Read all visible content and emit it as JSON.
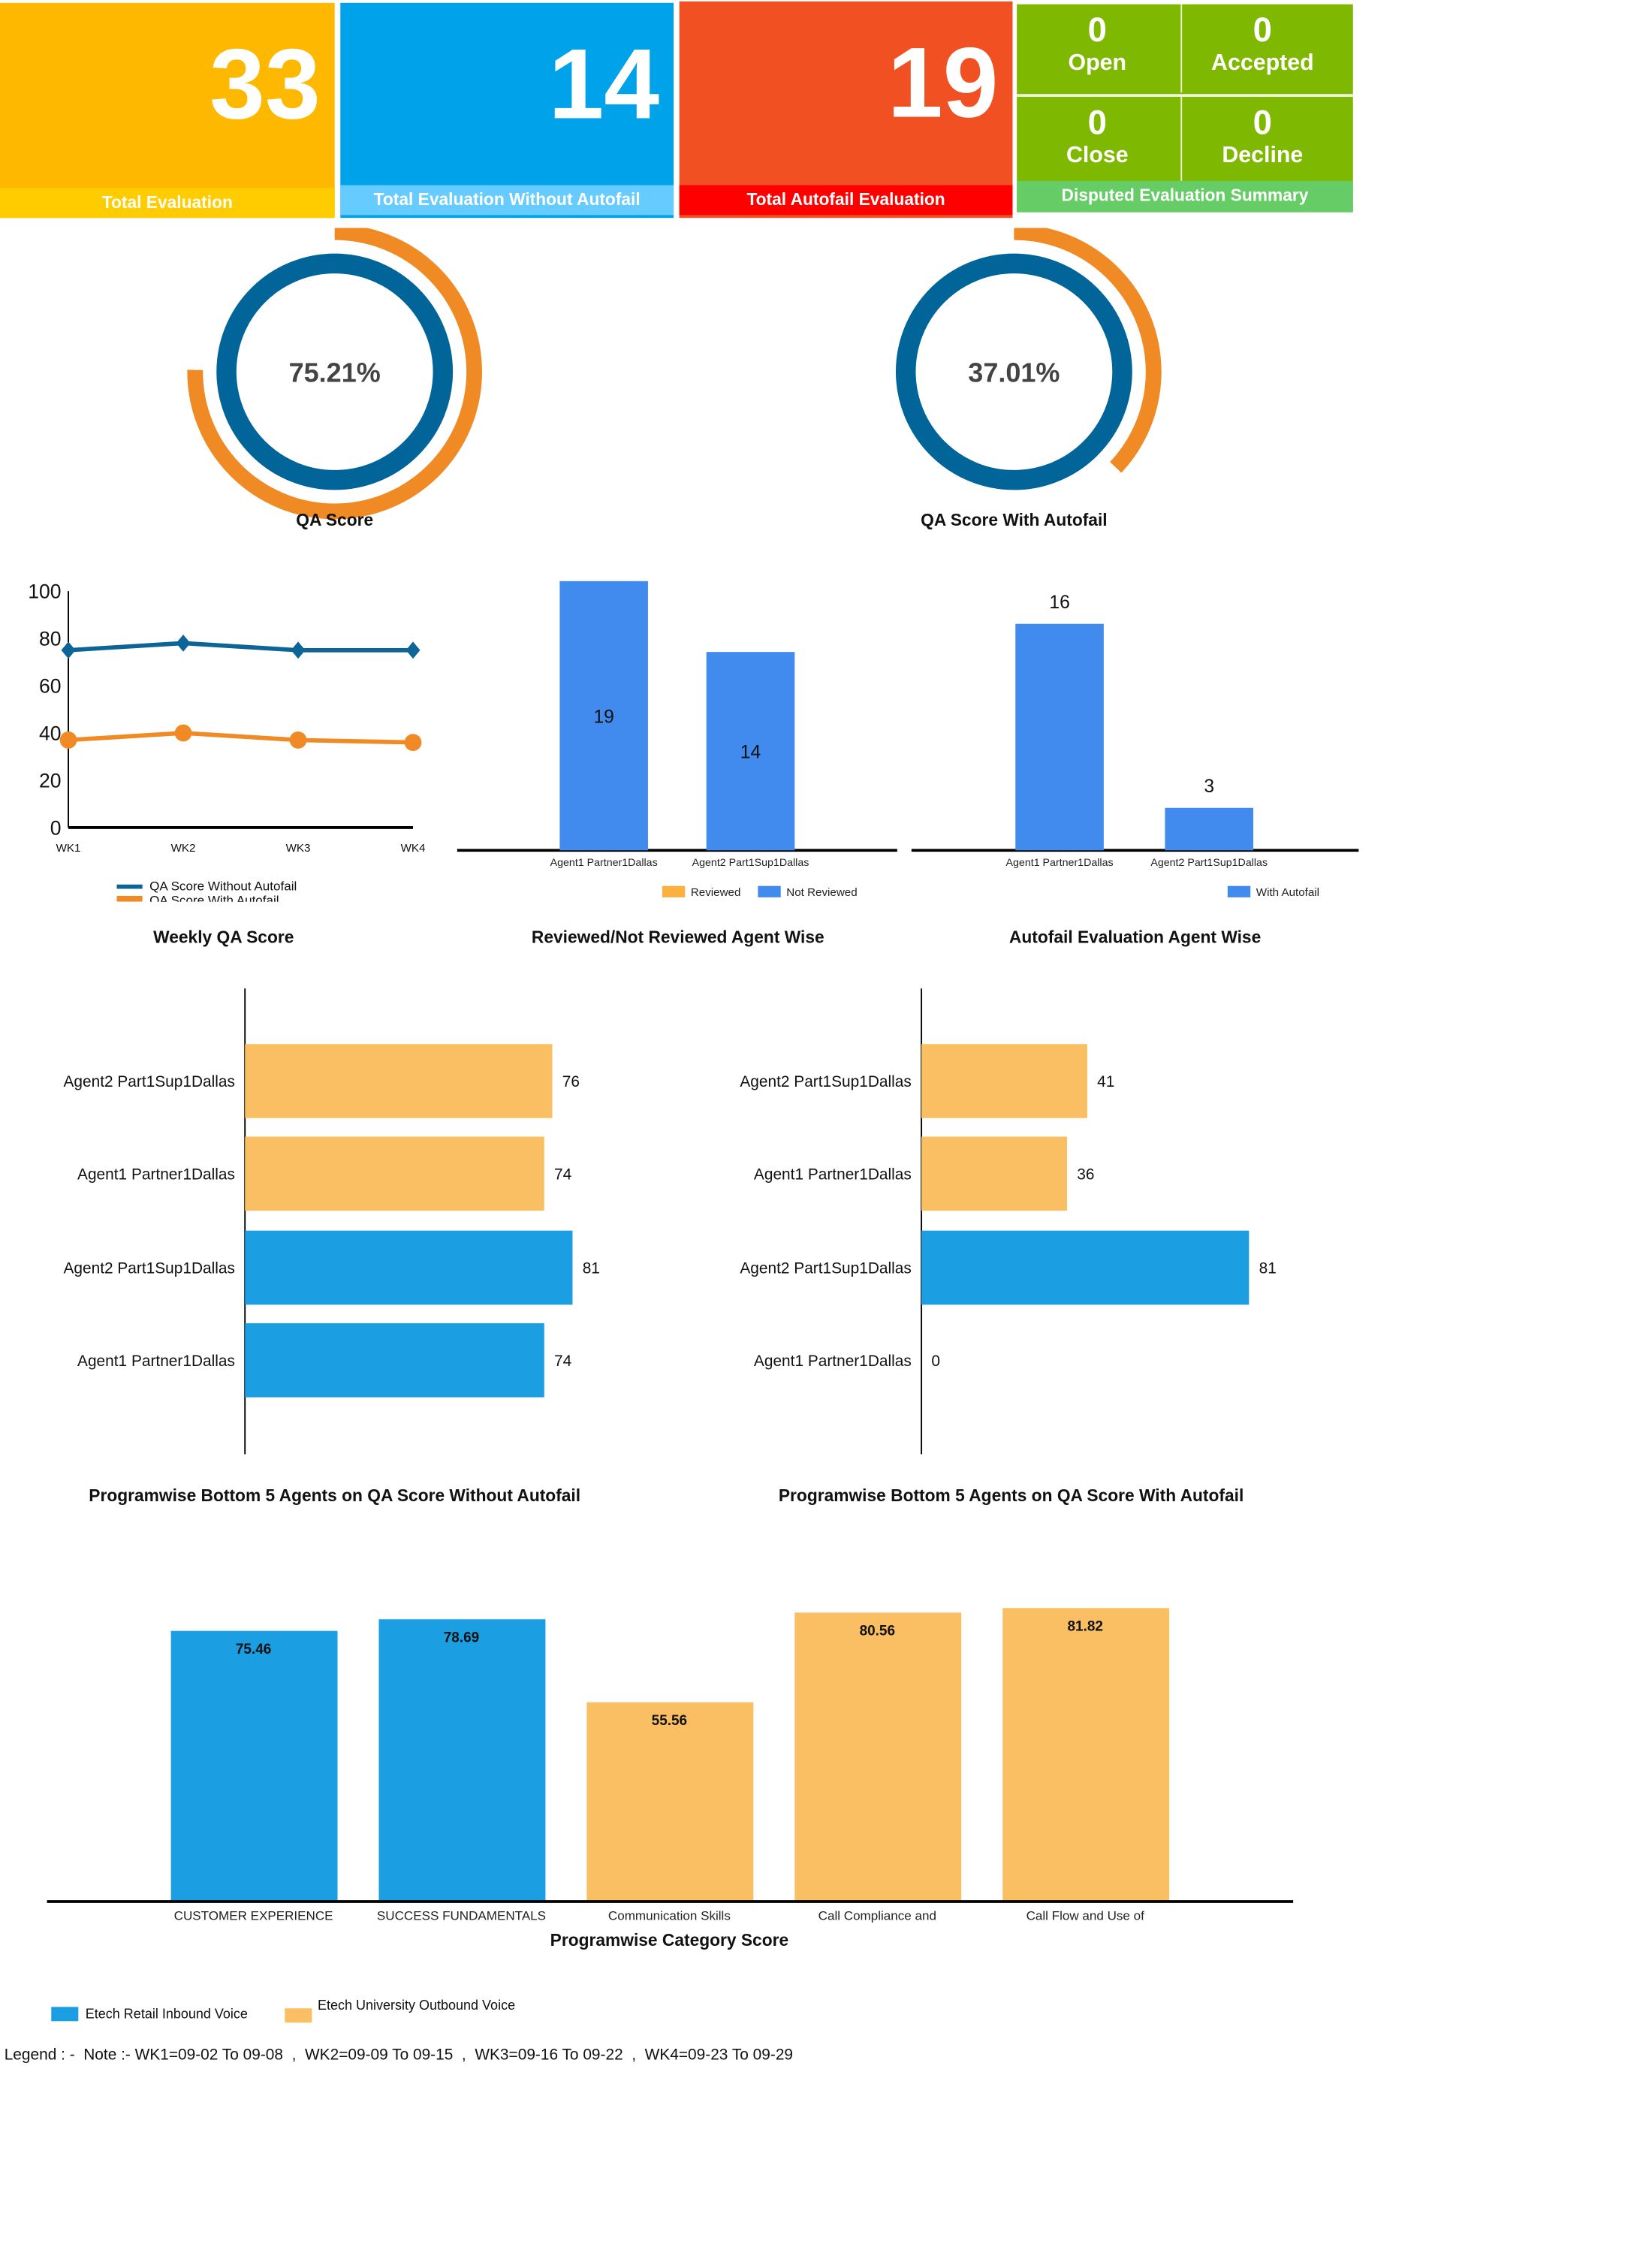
{
  "cards": [
    {
      "value": "33",
      "label": "Total Evaluation",
      "color": "#FFB800",
      "footer_color": "#FFCC00"
    },
    {
      "value": "14",
      "label": "Total Evaluation Without Autofail",
      "color": "#00A2EA",
      "footer_color": "#66CCFF"
    },
    {
      "value": "19",
      "label": "Total Autofail Evaluation",
      "color": "#F15022",
      "footer_color": "#FF0000"
    }
  ],
  "disputed": {
    "title": "Disputed Evaluation Summary",
    "color": "#7FB800",
    "footer_color": "#66CC66",
    "items": [
      {
        "value": "0",
        "label": "Open"
      },
      {
        "value": "0",
        "label": "Accepted"
      },
      {
        "value": "0",
        "label": "Close"
      },
      {
        "value": "0",
        "label": "Decline"
      }
    ]
  },
  "gauges": [
    {
      "title": "QA Score",
      "value_label": "75.21%",
      "value": 75.21
    },
    {
      "title": "QA Score With Autofail",
      "value_label": "37.01%",
      "value": 37.01
    }
  ],
  "chart_data": [
    {
      "type": "line",
      "title": "Weekly QA Score",
      "categories": [
        "WK1",
        "WK2",
        "WK3",
        "WK4"
      ],
      "ylim": [
        0,
        100
      ],
      "yticks": [
        "0",
        "20",
        "40",
        "60",
        "80",
        "100"
      ],
      "series": [
        {
          "name": "QA Score Without Autofail",
          "values": [
            75,
            78,
            75,
            75
          ],
          "color": "#0D6496",
          "marker": "diamond"
        },
        {
          "name": "QA Score With Autofail",
          "values": [
            37,
            40,
            37,
            36
          ],
          "color": "#F08A24",
          "marker": "circle"
        }
      ],
      "legend": "bottom"
    },
    {
      "type": "bar",
      "title": "Reviewed/Not Reviewed Agent Wise",
      "categories": [
        "Agent1 Partner1Dallas",
        "Agent2 Part1Sup1Dallas"
      ],
      "series": [
        {
          "name": "Reviewed",
          "values": [
            0,
            0
          ],
          "color": "#FBB040"
        },
        {
          "name": "Not Reviewed",
          "values": [
            19,
            14
          ],
          "color": "#418BEE"
        }
      ],
      "legend": "bottom-right"
    },
    {
      "type": "bar",
      "title": "Autofail Evaluation Agent Wise",
      "categories": [
        "Agent1 Partner1Dallas",
        "Agent2 Part1Sup1Dallas"
      ],
      "series": [
        {
          "name": "With Autofail",
          "values": [
            16,
            3
          ],
          "color": "#418BEE"
        }
      ],
      "legend": "bottom-right"
    },
    {
      "type": "bar",
      "orientation": "horizontal",
      "title": "Programwise Bottom 5 Agents on QA Score Without Autofail",
      "categories": [
        "Agent2  Part1Sup1Dallas",
        "Agent1  Partner1Dallas",
        "Agent2  Part1Sup1Dallas",
        "Agent1  Partner1Dallas"
      ],
      "values": [
        76,
        74,
        81,
        74
      ],
      "colors": [
        "#FBBF63",
        "#FBBF63",
        "#1B9FE2",
        "#1B9FE2"
      ]
    },
    {
      "type": "bar",
      "orientation": "horizontal",
      "title": "Programwise Bottom 5 Agents on QA Score With Autofail",
      "categories": [
        "Agent2  Part1Sup1Dallas",
        "Agent1  Partner1Dallas",
        "Agent2  Part1Sup1Dallas",
        "Agent1  Partner1Dallas"
      ],
      "values": [
        41,
        36,
        81,
        0
      ],
      "colors": [
        "#FBBF63",
        "#FBBF63",
        "#1B9FE2",
        "#1B9FE2"
      ]
    },
    {
      "type": "bar",
      "title": "Programwise Category Score",
      "categories": [
        "CUSTOMER EXPERIENCE",
        "SUCCESS FUNDAMENTALS",
        "Communication Skills",
        "Call Compliance and",
        "Call Flow and Use of"
      ],
      "values": [
        75.46,
        78.69,
        55.56,
        80.56,
        81.82
      ],
      "value_labels": [
        "75.46",
        "78.69",
        "55.56",
        "80.56",
        "81.82"
      ],
      "colors": [
        "#1B9FE2",
        "#1B9FE2",
        "#FBBF63",
        "#FBBF63",
        "#FBBF63"
      ],
      "legend_items": [
        {
          "name": "Etech Retail Inbound Voice",
          "color": "#1B9FE2"
        },
        {
          "name": "Etech University Outbound Voice",
          "color": "#FBBF63"
        }
      ],
      "legend": "bottom-left"
    }
  ],
  "footer_note": "Legend : -  Note :- WK1=09-02 To 09-08  ,  WK2=09-09 To 09-15  ,  WK3=09-16 To 09-22  ,  WK4=09-23 To 09-29"
}
